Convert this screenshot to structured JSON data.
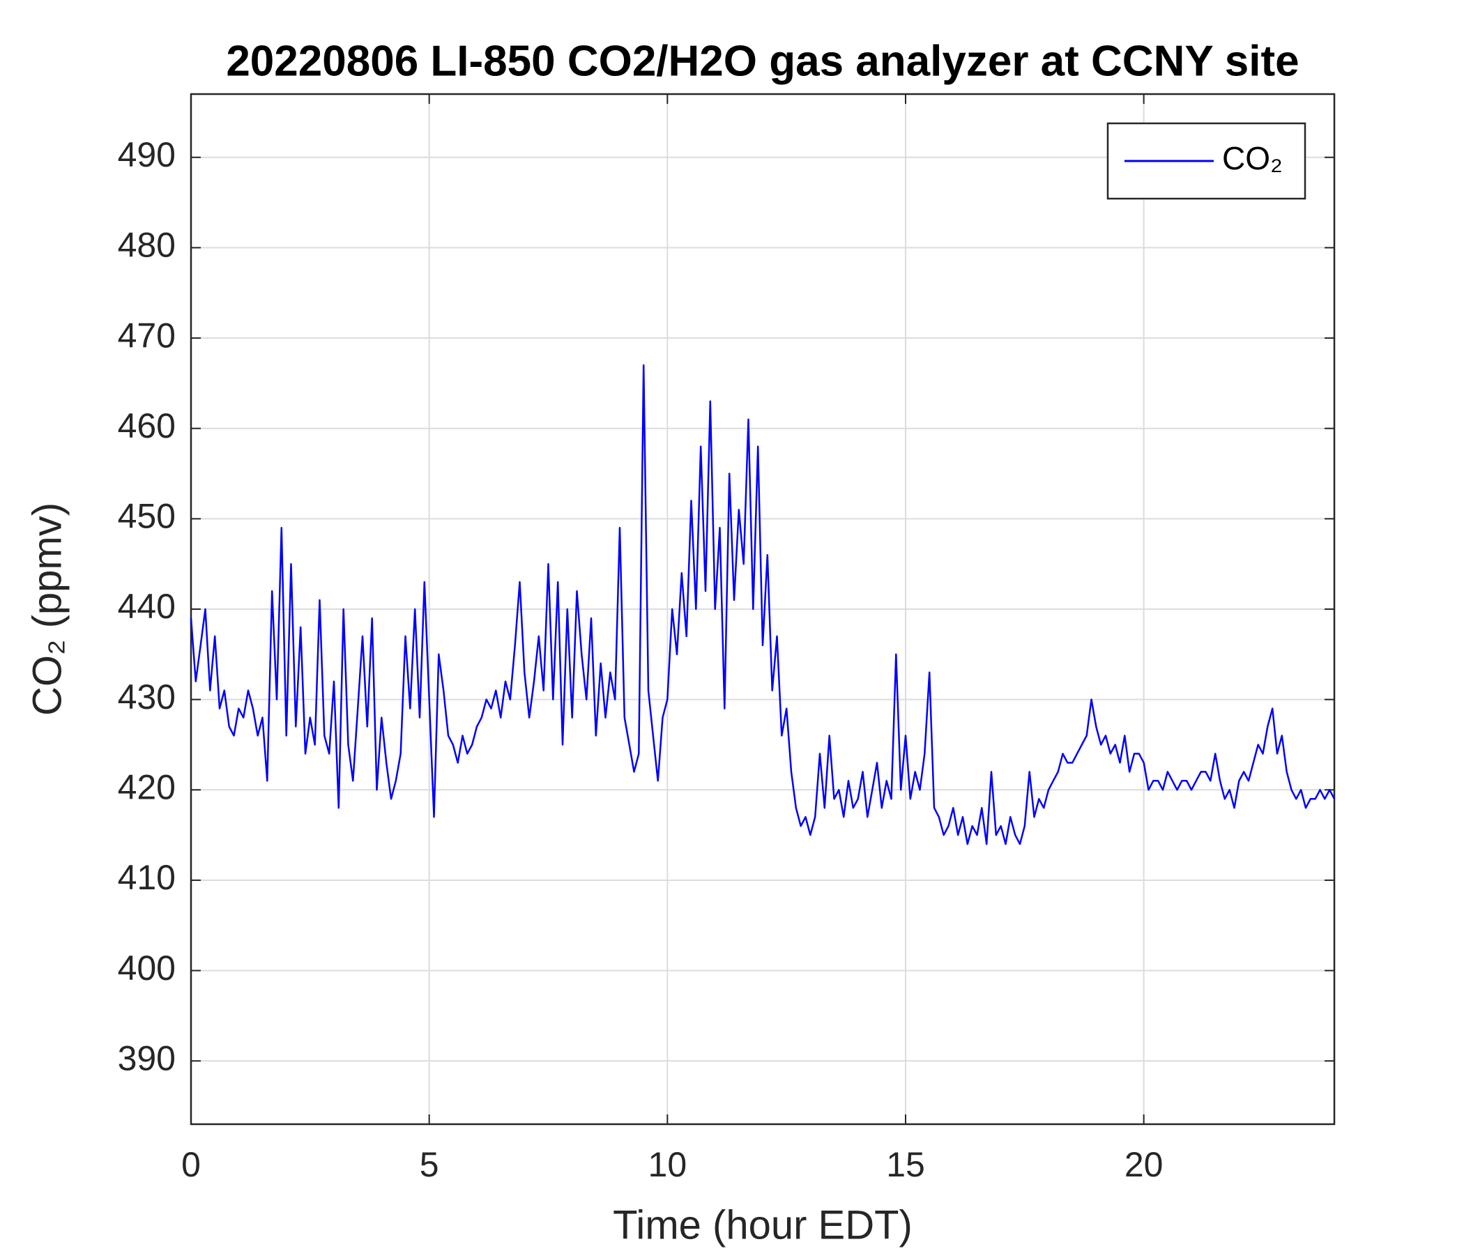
{
  "chart_data": {
    "type": "line",
    "title": "20220806 LI-850 CO2/H2O gas analyzer at CCNY site",
    "xlabel": "Time (hour EDT)",
    "ylabel": "CO₂ (ppmv)",
    "xlim": [
      0,
      24
    ],
    "ylim": [
      383,
      497
    ],
    "xticks": [
      0,
      5,
      10,
      15,
      20
    ],
    "yticks": [
      390,
      400,
      410,
      420,
      430,
      440,
      450,
      460,
      470,
      480,
      490
    ],
    "grid": true,
    "legend": "upper right",
    "x": [
      0,
      0.1,
      0.2,
      0.3,
      0.4,
      0.5,
      0.6,
      0.7,
      0.8,
      0.9,
      1,
      1.1,
      1.2,
      1.3,
      1.4,
      1.5,
      1.6,
      1.7,
      1.8,
      1.9,
      2,
      2.1,
      2.2,
      2.3,
      2.4,
      2.5,
      2.6,
      2.7,
      2.8,
      2.9,
      3,
      3.1,
      3.2,
      3.3,
      3.4,
      3.5,
      3.6,
      3.7,
      3.8,
      3.9,
      4,
      4.1,
      4.2,
      4.3,
      4.4,
      4.5,
      4.6,
      4.7,
      4.8,
      4.9,
      5,
      5.1,
      5.2,
      5.3,
      5.4,
      5.5,
      5.6,
      5.7,
      5.8,
      5.9,
      6,
      6.1,
      6.2,
      6.3,
      6.4,
      6.5,
      6.6,
      6.7,
      6.8,
      6.9,
      7,
      7.1,
      7.2,
      7.3,
      7.4,
      7.5,
      7.6,
      7.7,
      7.8,
      7.9,
      8,
      8.1,
      8.2,
      8.3,
      8.4,
      8.5,
      8.6,
      8.7,
      8.8,
      8.9,
      9,
      9.1,
      9.2,
      9.3,
      9.4,
      9.5,
      9.6,
      9.7,
      9.8,
      9.9,
      10,
      10.1,
      10.2,
      10.3,
      10.4,
      10.5,
      10.6,
      10.7,
      10.8,
      10.9,
      11,
      11.1,
      11.2,
      11.3,
      11.4,
      11.5,
      11.6,
      11.7,
      11.8,
      11.9,
      12,
      12.1,
      12.2,
      12.3,
      12.4,
      12.5,
      12.6,
      12.7,
      12.8,
      12.9,
      13,
      13.1,
      13.2,
      13.3,
      13.4,
      13.5,
      13.6,
      13.7,
      13.8,
      13.9,
      14,
      14.1,
      14.2,
      14.3,
      14.4,
      14.5,
      14.6,
      14.7,
      14.8,
      14.9,
      15,
      15.1,
      15.2,
      15.3,
      15.4,
      15.5,
      15.6,
      15.7,
      15.8,
      15.9,
      16,
      16.1,
      16.2,
      16.3,
      16.4,
      16.5,
      16.6,
      16.7,
      16.8,
      16.9,
      17,
      17.1,
      17.2,
      17.3,
      17.4,
      17.5,
      17.6,
      17.7,
      17.8,
      17.9,
      18,
      18.1,
      18.2,
      18.3,
      18.4,
      18.5,
      18.6,
      18.7,
      18.8,
      18.9,
      19,
      19.1,
      19.2,
      19.3,
      19.4,
      19.5,
      19.6,
      19.7,
      19.8,
      19.9,
      20,
      20.1,
      20.2,
      20.3,
      20.4,
      20.5,
      20.6,
      20.7,
      20.8,
      20.9,
      21,
      21.1,
      21.2,
      21.3,
      21.4,
      21.5,
      21.6,
      21.7,
      21.8,
      21.9,
      22,
      22.1,
      22.2,
      22.3,
      22.4,
      22.5,
      22.6,
      22.7,
      22.8,
      22.9,
      23,
      23.1,
      23.2,
      23.3,
      23.4,
      23.5,
      23.6,
      23.7,
      23.8,
      23.9,
      24
    ],
    "series": [
      {
        "name": "CO₂",
        "color": "#0000ff",
        "values": [
          439,
          432,
          436,
          440,
          431,
          437,
          429,
          431,
          427,
          426,
          429,
          428,
          431,
          429,
          426,
          428,
          421,
          442,
          430,
          449,
          426,
          445,
          427,
          438,
          424,
          428,
          425,
          441,
          426,
          424,
          432,
          418,
          440,
          425,
          421,
          429,
          437,
          427,
          439,
          420,
          428,
          423,
          419,
          421,
          424,
          437,
          429,
          440,
          428,
          443,
          430,
          417,
          435,
          431,
          426,
          425,
          423,
          426,
          424,
          425,
          427,
          428,
          430,
          429,
          431,
          428,
          432,
          430,
          436,
          443,
          433,
          428,
          432,
          437,
          431,
          445,
          430,
          443,
          425,
          440,
          428,
          442,
          435,
          430,
          439,
          426,
          434,
          428,
          433,
          430,
          449,
          428,
          425,
          422,
          424,
          467,
          431,
          426,
          421,
          428,
          430,
          440,
          435,
          444,
          437,
          452,
          440,
          458,
          442,
          463,
          440,
          449,
          429,
          455,
          441,
          451,
          445,
          461,
          440,
          458,
          436,
          446,
          431,
          437,
          426,
          429,
          422,
          418,
          416,
          417,
          415,
          417,
          424,
          418,
          426,
          419,
          420,
          417,
          421,
          418,
          419,
          422,
          417,
          420,
          423,
          418,
          421,
          419,
          435,
          420,
          426,
          419,
          422,
          420,
          424,
          433,
          418,
          417,
          415,
          416,
          418,
          415,
          417,
          414,
          416,
          415,
          418,
          414,
          422,
          415,
          416,
          414,
          417,
          415,
          414,
          416,
          422,
          417,
          419,
          418,
          420,
          421,
          422,
          424,
          423,
          423,
          424,
          425,
          426,
          430,
          427,
          425,
          426,
          424,
          425,
          423,
          426,
          422,
          424,
          424,
          423,
          420,
          421,
          421,
          420,
          422,
          421,
          420,
          421,
          421,
          420,
          421,
          422,
          422,
          421,
          424,
          421,
          419,
          420,
          418,
          421,
          422,
          421,
          423,
          425,
          424,
          427,
          429,
          424,
          426,
          422,
          420,
          419,
          420,
          418,
          419,
          419,
          420,
          419,
          420,
          419
        ]
      }
    ]
  }
}
